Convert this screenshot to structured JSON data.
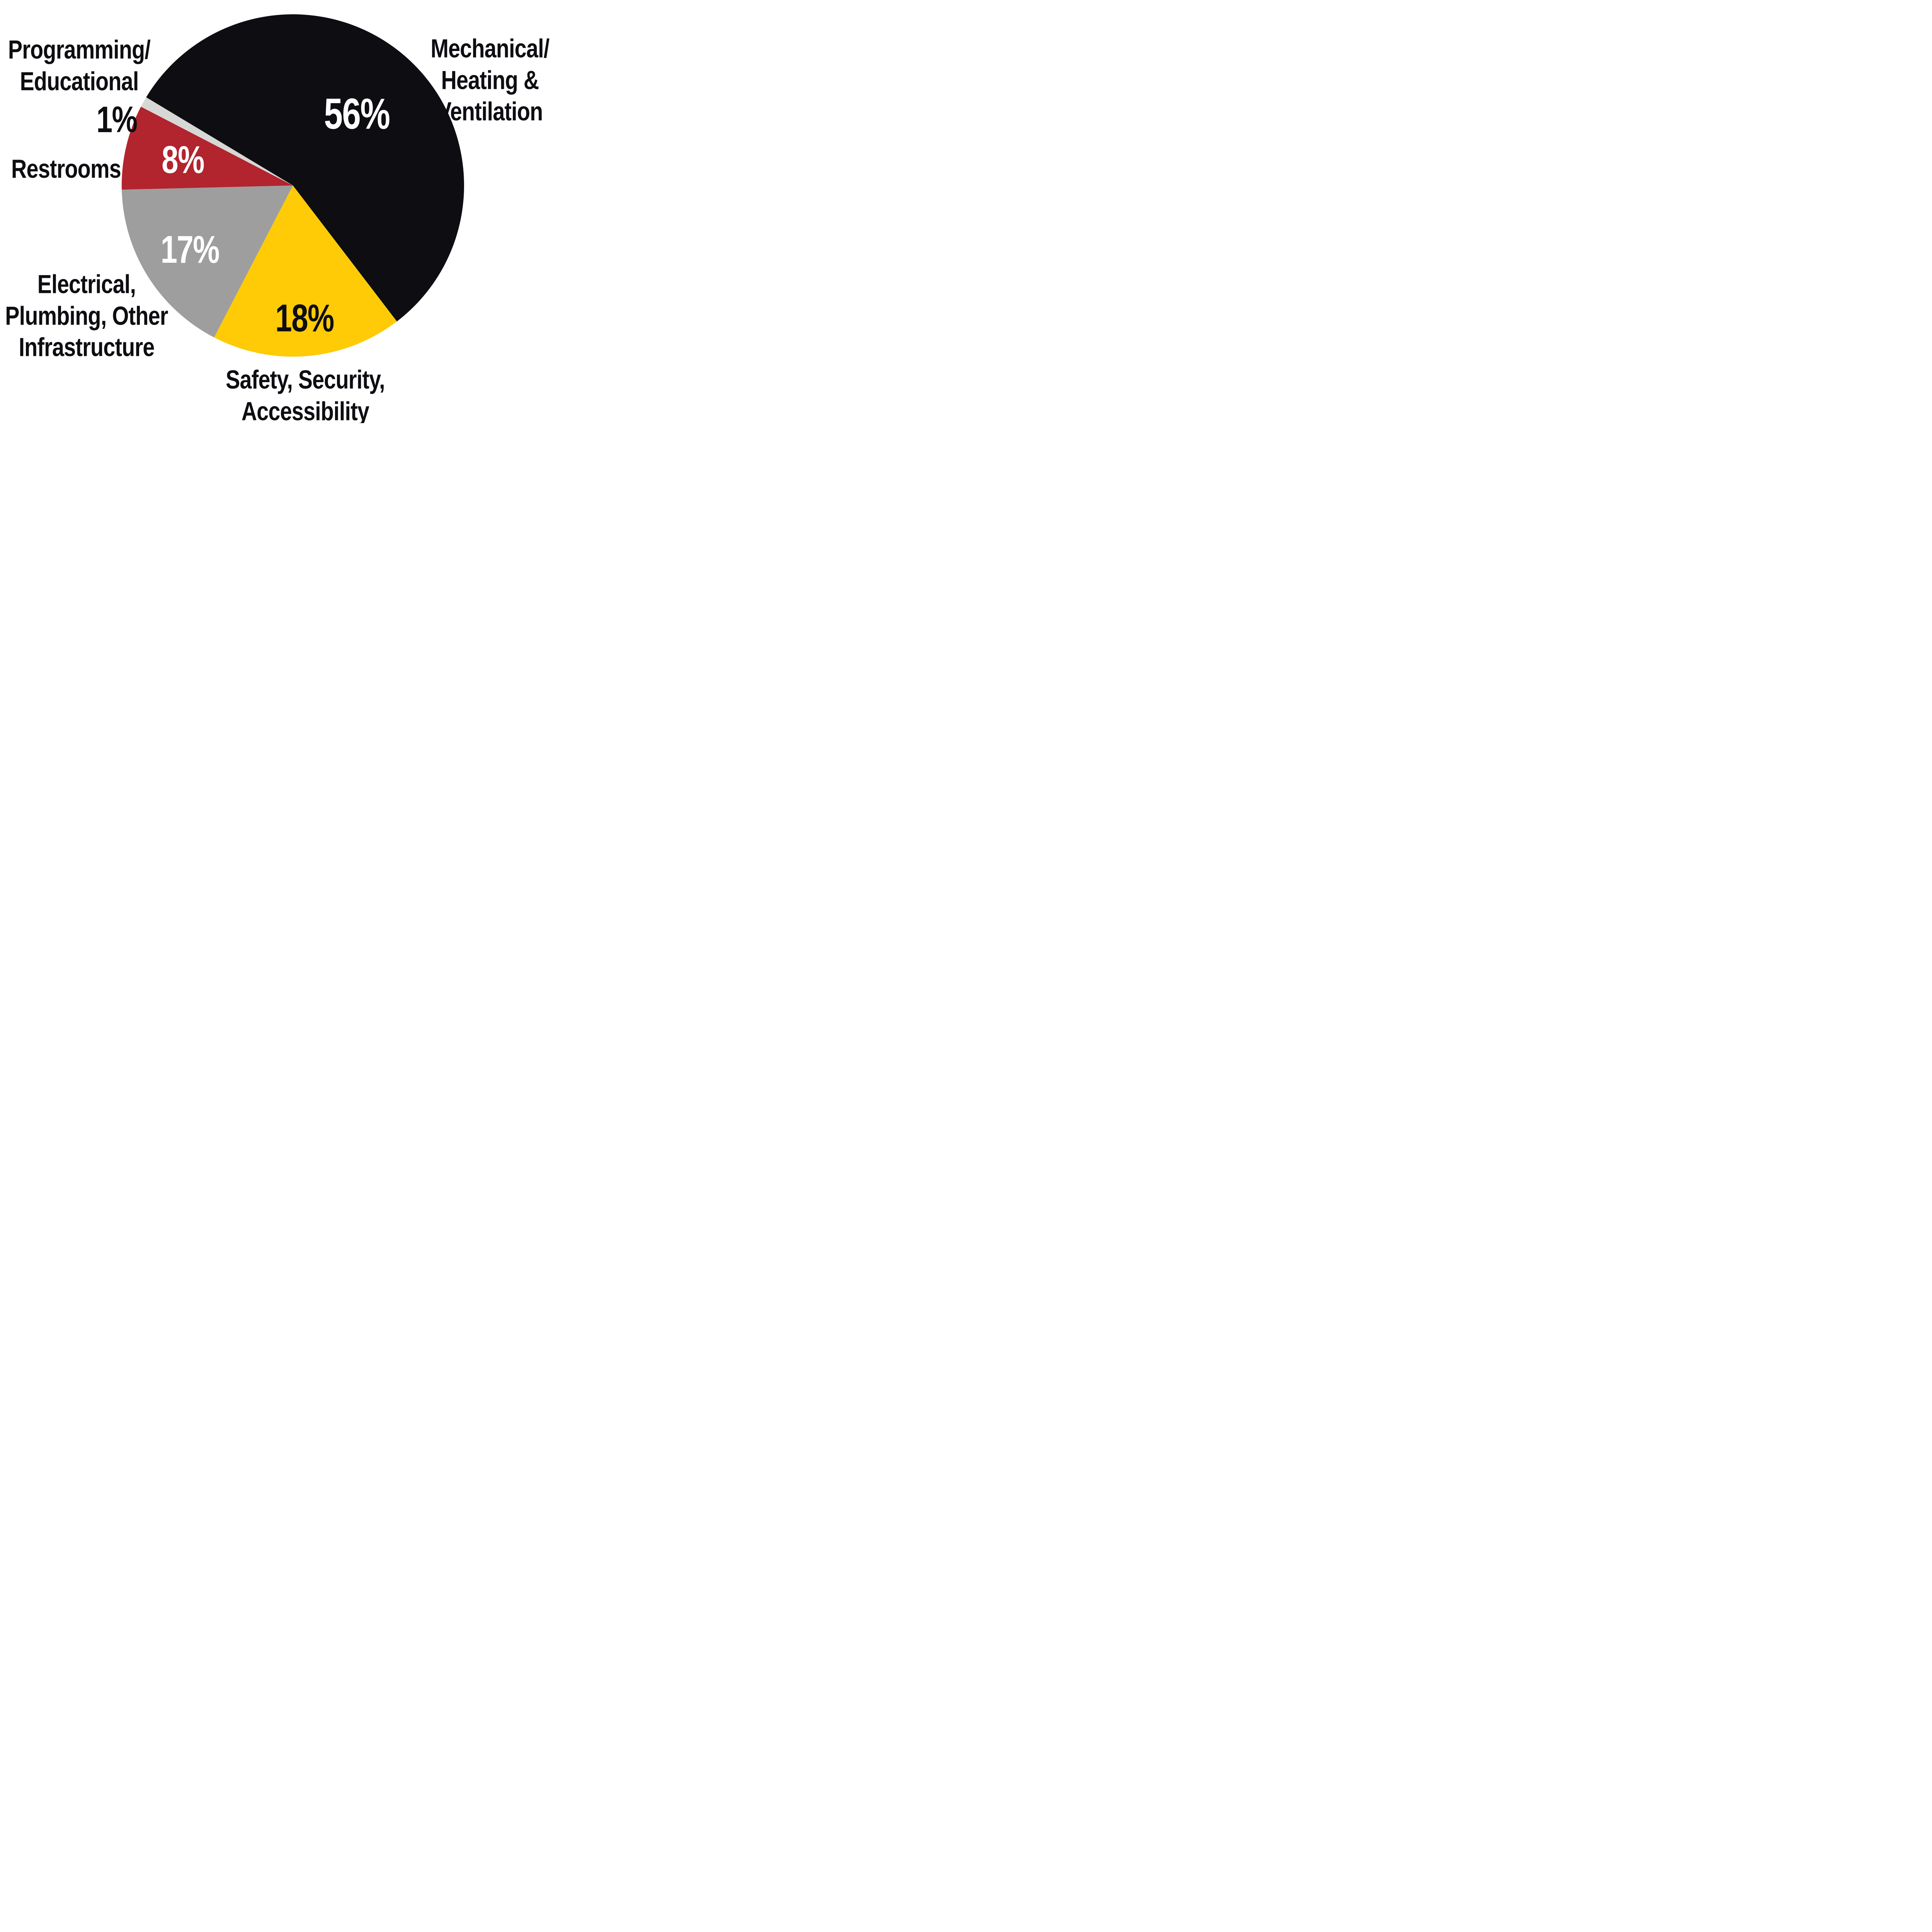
{
  "chart_data": {
    "type": "pie",
    "title": "",
    "unit": "percent",
    "background": "#FFFFFF",
    "legend_position": "outside-callout-labels",
    "rotation_deg_clockwise_from_12oclock": -59,
    "direction": "clockwise",
    "categories": [
      "Mechanical/Heating & Ventilation",
      "Safety, Security, Accessibility",
      "Electrical, Plumbing, Other Infrastructure",
      "Restrooms",
      "Programming/Educational"
    ],
    "values": [
      56,
      18,
      17,
      8,
      1
    ],
    "slices": [
      {
        "id": "mechanical-heating-ventilation",
        "label": "Mechanical/Heating & Ventilation",
        "value": 56,
        "pct_text": "56%",
        "color": "#0D0D12",
        "pct_color": "#FFFFFF",
        "pct_on_slice": true,
        "pct_radius_fraction": 0.56,
        "pct_font_px": 112
      },
      {
        "id": "safety-security-accessibility",
        "label": "Safety, Security, Accessibility",
        "value": 18,
        "pct_text": "18%",
        "color": "#FFCB06",
        "pct_color": "#0D0D12",
        "pct_on_slice": true,
        "pct_radius_fraction": 0.78,
        "pct_font_px": 100
      },
      {
        "id": "electrical-plumbing-infrastructure",
        "label": "Electrical, Plumbing, Other Infrastructure",
        "value": 17,
        "pct_text": "17%",
        "color": "#9E9E9E",
        "pct_color": "#FFFFFF",
        "pct_on_slice": true,
        "pct_radius_fraction": 0.71,
        "pct_font_px": 100
      },
      {
        "id": "restrooms",
        "label": "Restrooms",
        "value": 8,
        "pct_text": "8%",
        "color": "#B2242E",
        "pct_color": "#FFFFFF",
        "pct_on_slice": true,
        "pct_radius_fraction": 0.66,
        "pct_font_px": 100
      },
      {
        "id": "programming-educational",
        "label": "Programming/Educational",
        "value": 1,
        "pct_text": "1%",
        "color": "#D7D7D5",
        "pct_color": "#0D0D12",
        "pct_on_slice": false,
        "pct_radius_fraction": null,
        "pct_font_px": null
      }
    ]
  },
  "labels": {
    "programming": {
      "text": "Programming/\nEducational",
      "pct": "1%"
    },
    "mechanical": {
      "text": "Mechanical/\nHeating &\nVentilation"
    },
    "restrooms": {
      "text": "Restrooms"
    },
    "electrical": {
      "text": "Electrical,\nPlumbing, Other\nInfrastructure"
    },
    "safety": {
      "text": "Safety, Security,\nAccessibility"
    }
  }
}
